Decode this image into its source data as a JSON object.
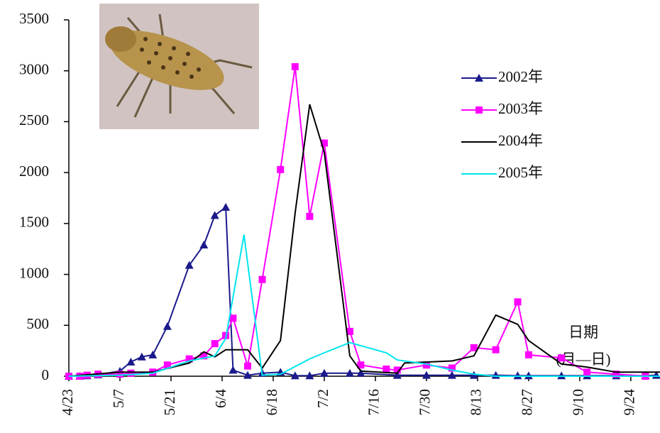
{
  "chart_data": {
    "type": "line",
    "x_label": "日期",
    "x_label_unit": "(月—日)",
    "xlim": [
      "4/23",
      "10/2"
    ],
    "xticks": [
      "4/23",
      "5/7",
      "5/21",
      "6/4",
      "6/18",
      "7/2",
      "7/16",
      "7/30",
      "8/13",
      "8/27",
      "9/10",
      "9/24"
    ],
    "ylim": [
      0,
      3500
    ],
    "yticks": [
      0,
      500,
      1000,
      1500,
      2000,
      2500,
      3000,
      3500
    ],
    "series": [
      {
        "name": "2002年",
        "color": "#1a1a8c",
        "marker": "triangle",
        "x": [
          "4/23",
          "4/26",
          "4/28",
          "5/1",
          "5/7",
          "5/10",
          "5/13",
          "5/16",
          "5/20",
          "5/26",
          "5/30",
          "6/2",
          "6/5",
          "6/7",
          "6/11",
          "6/15",
          "6/20",
          "6/24",
          "6/28",
          "7/2",
          "7/9",
          "7/12",
          "7/22",
          "7/30",
          "8/6",
          "8/12",
          "8/18",
          "8/24",
          "8/27",
          "9/5",
          "9/12",
          "9/20",
          "9/28",
          "10/1"
        ],
        "values": [
          0,
          0,
          5,
          15,
          50,
          140,
          190,
          210,
          490,
          1090,
          1290,
          1580,
          1660,
          60,
          10,
          30,
          40,
          5,
          5,
          30,
          30,
          30,
          10,
          10,
          10,
          10,
          10,
          5,
          5,
          5,
          5,
          5,
          5,
          10
        ]
      },
      {
        "name": "2003年",
        "color": "#ff00ff",
        "marker": "square",
        "x": [
          "4/23",
          "4/26",
          "4/28",
          "5/1",
          "5/7",
          "5/10",
          "5/16",
          "5/20",
          "5/26",
          "5/30",
          "6/2",
          "6/5",
          "6/7",
          "6/11",
          "6/15",
          "6/20",
          "6/24",
          "6/28",
          "7/2",
          "7/9",
          "7/12",
          "7/19",
          "7/22",
          "7/30",
          "8/6",
          "8/12",
          "8/18",
          "8/24",
          "8/27",
          "9/5",
          "9/12",
          "9/20",
          "9/28"
        ],
        "values": [
          0,
          0,
          10,
          20,
          20,
          30,
          40,
          110,
          170,
          200,
          320,
          400,
          570,
          100,
          950,
          2030,
          3040,
          1570,
          2290,
          440,
          110,
          70,
          60,
          110,
          80,
          280,
          260,
          730,
          210,
          180,
          40,
          20,
          0
        ]
      },
      {
        "name": "2004年",
        "color": "#000000",
        "marker": "none",
        "x": [
          "4/23",
          "5/7",
          "5/16",
          "5/26",
          "5/30",
          "6/2",
          "6/5",
          "6/11",
          "6/15",
          "6/20",
          "6/24",
          "6/28",
          "7/2",
          "7/9",
          "7/12",
          "7/22",
          "7/24",
          "8/6",
          "8/12",
          "8/18",
          "8/24",
          "8/27",
          "9/5",
          "9/12",
          "9/20",
          "10/2"
        ],
        "values": [
          0,
          40,
          40,
          130,
          240,
          190,
          260,
          260,
          80,
          350,
          1600,
          2670,
          2200,
          200,
          50,
          30,
          130,
          150,
          200,
          600,
          510,
          350,
          120,
          90,
          40,
          40
        ]
      },
      {
        "name": "2005年",
        "color": "#00e5ee",
        "marker": "none",
        "x": [
          "4/23",
          "5/7",
          "5/16",
          "5/26",
          "6/2",
          "6/5",
          "6/10",
          "6/15",
          "6/20",
          "6/28",
          "7/2",
          "7/9",
          "7/19",
          "7/22",
          "7/30",
          "8/6",
          "8/12",
          "8/18",
          "8/27",
          "9/12",
          "10/2"
        ],
        "values": [
          0,
          10,
          30,
          150,
          200,
          370,
          1390,
          10,
          20,
          170,
          230,
          330,
          230,
          160,
          120,
          60,
          20,
          0,
          0,
          0,
          0
        ]
      }
    ]
  }
}
